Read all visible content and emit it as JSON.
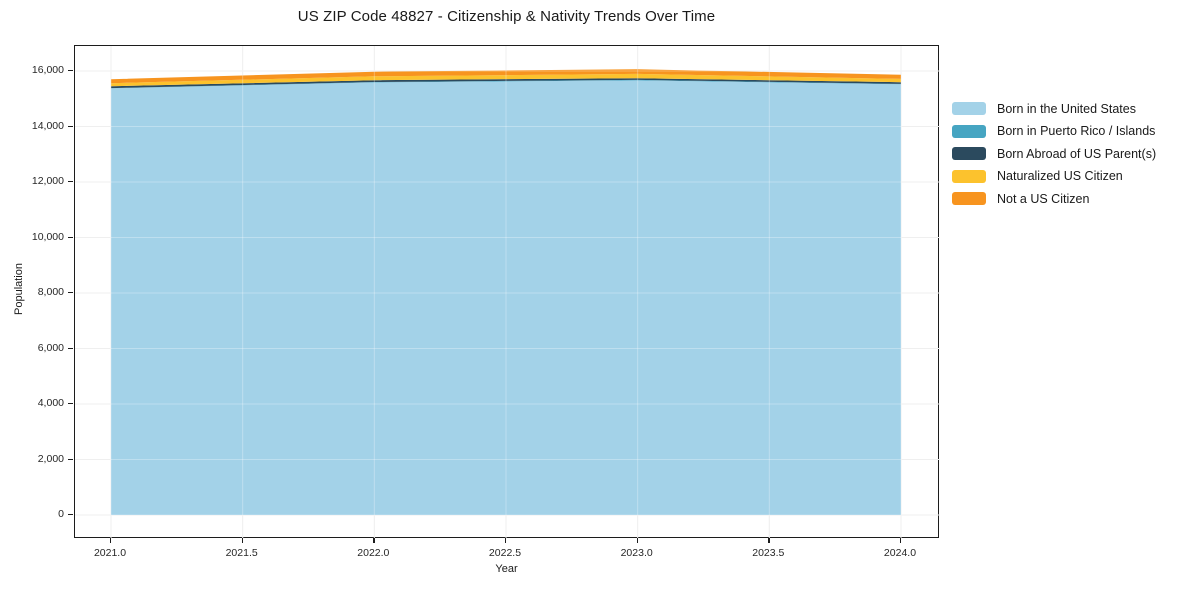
{
  "chart_data": {
    "type": "area",
    "stacked": true,
    "title": "US ZIP Code 48827 - Citizenship & Nativity Trends Over Time",
    "xlabel": "Year",
    "ylabel": "Population",
    "x": [
      2021,
      2022,
      2023,
      2024
    ],
    "series": [
      {
        "name": "Born in the United States",
        "color": "#a3d2e8",
        "values": [
          15375,
          15590,
          15660,
          15520
        ]
      },
      {
        "name": "Born in Puerto Rico / Islands",
        "color": "#46a5c2",
        "values": [
          10,
          15,
          20,
          15
        ]
      },
      {
        "name": "Born Abroad of US Parent(s)",
        "color": "#2b4a5e",
        "values": [
          65,
          65,
          60,
          60
        ]
      },
      {
        "name": "Naturalized US Citizen",
        "color": "#fcc22d",
        "values": [
          110,
          140,
          155,
          120
        ]
      },
      {
        "name": "Not a US Citizen",
        "color": "#f7941f",
        "values": [
          145,
          165,
          170,
          150
        ]
      }
    ],
    "xticks": {
      "values": [
        2021.0,
        2021.5,
        2022.0,
        2022.5,
        2023.0,
        2023.5,
        2024.0
      ],
      "labels": [
        "2021.0",
        "2021.5",
        "2022.0",
        "2022.5",
        "2023.0",
        "2023.5",
        "2024.0"
      ]
    },
    "yticks": {
      "values": [
        0,
        2000,
        4000,
        6000,
        8000,
        10000,
        12000,
        14000,
        16000
      ],
      "labels": [
        "0",
        "2,000",
        "4,000",
        "6,000",
        "8,000",
        "10,000",
        "12,000",
        "14,000",
        "16,000"
      ]
    },
    "ylim": [
      0,
      16000
    ],
    "grid": true,
    "legend_position": "right",
    "grid_color": "#e9e9e9"
  }
}
